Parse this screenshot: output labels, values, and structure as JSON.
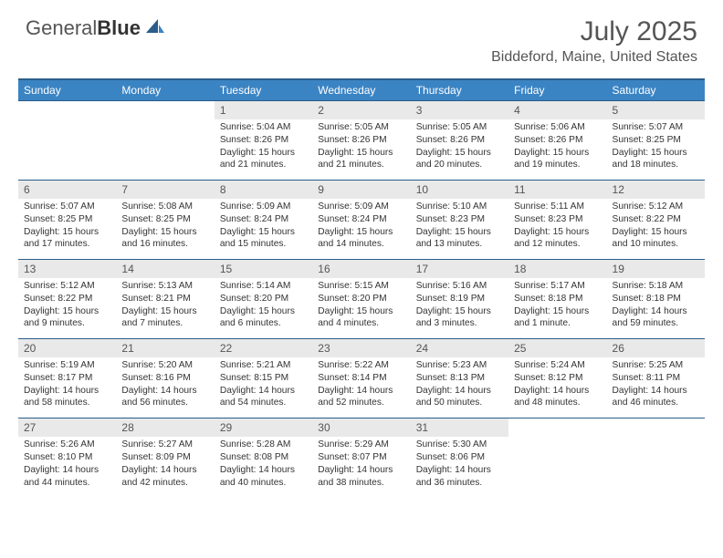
{
  "brand": {
    "part1": "General",
    "part2": "Blue"
  },
  "title": "July 2025",
  "location": "Biddeford, Maine, United States",
  "colors": {
    "header_bg": "#3b84c4",
    "header_border": "#2a5d8a",
    "daynum_bg": "#e9e9e9",
    "text": "#333333",
    "muted": "#555555",
    "white": "#ffffff"
  },
  "typography": {
    "title_fontsize": 30,
    "location_fontsize": 16,
    "dayheader_fontsize": 12,
    "daynum_fontsize": 12,
    "info_fontsize": 10.2
  },
  "day_headers": [
    "Sunday",
    "Monday",
    "Tuesday",
    "Wednesday",
    "Thursday",
    "Friday",
    "Saturday"
  ],
  "weeks": [
    [
      {
        "n": "",
        "sr": "",
        "ss": "",
        "dl": ""
      },
      {
        "n": "",
        "sr": "",
        "ss": "",
        "dl": ""
      },
      {
        "n": "1",
        "sr": "5:04 AM",
        "ss": "8:26 PM",
        "dl": "15 hours and 21 minutes."
      },
      {
        "n": "2",
        "sr": "5:05 AM",
        "ss": "8:26 PM",
        "dl": "15 hours and 21 minutes."
      },
      {
        "n": "3",
        "sr": "5:05 AM",
        "ss": "8:26 PM",
        "dl": "15 hours and 20 minutes."
      },
      {
        "n": "4",
        "sr": "5:06 AM",
        "ss": "8:26 PM",
        "dl": "15 hours and 19 minutes."
      },
      {
        "n": "5",
        "sr": "5:07 AM",
        "ss": "8:25 PM",
        "dl": "15 hours and 18 minutes."
      }
    ],
    [
      {
        "n": "6",
        "sr": "5:07 AM",
        "ss": "8:25 PM",
        "dl": "15 hours and 17 minutes."
      },
      {
        "n": "7",
        "sr": "5:08 AM",
        "ss": "8:25 PM",
        "dl": "15 hours and 16 minutes."
      },
      {
        "n": "8",
        "sr": "5:09 AM",
        "ss": "8:24 PM",
        "dl": "15 hours and 15 minutes."
      },
      {
        "n": "9",
        "sr": "5:09 AM",
        "ss": "8:24 PM",
        "dl": "15 hours and 14 minutes."
      },
      {
        "n": "10",
        "sr": "5:10 AM",
        "ss": "8:23 PM",
        "dl": "15 hours and 13 minutes."
      },
      {
        "n": "11",
        "sr": "5:11 AM",
        "ss": "8:23 PM",
        "dl": "15 hours and 12 minutes."
      },
      {
        "n": "12",
        "sr": "5:12 AM",
        "ss": "8:22 PM",
        "dl": "15 hours and 10 minutes."
      }
    ],
    [
      {
        "n": "13",
        "sr": "5:12 AM",
        "ss": "8:22 PM",
        "dl": "15 hours and 9 minutes."
      },
      {
        "n": "14",
        "sr": "5:13 AM",
        "ss": "8:21 PM",
        "dl": "15 hours and 7 minutes."
      },
      {
        "n": "15",
        "sr": "5:14 AM",
        "ss": "8:20 PM",
        "dl": "15 hours and 6 minutes."
      },
      {
        "n": "16",
        "sr": "5:15 AM",
        "ss": "8:20 PM",
        "dl": "15 hours and 4 minutes."
      },
      {
        "n": "17",
        "sr": "5:16 AM",
        "ss": "8:19 PM",
        "dl": "15 hours and 3 minutes."
      },
      {
        "n": "18",
        "sr": "5:17 AM",
        "ss": "8:18 PM",
        "dl": "15 hours and 1 minute."
      },
      {
        "n": "19",
        "sr": "5:18 AM",
        "ss": "8:18 PM",
        "dl": "14 hours and 59 minutes."
      }
    ],
    [
      {
        "n": "20",
        "sr": "5:19 AM",
        "ss": "8:17 PM",
        "dl": "14 hours and 58 minutes."
      },
      {
        "n": "21",
        "sr": "5:20 AM",
        "ss": "8:16 PM",
        "dl": "14 hours and 56 minutes."
      },
      {
        "n": "22",
        "sr": "5:21 AM",
        "ss": "8:15 PM",
        "dl": "14 hours and 54 minutes."
      },
      {
        "n": "23",
        "sr": "5:22 AM",
        "ss": "8:14 PM",
        "dl": "14 hours and 52 minutes."
      },
      {
        "n": "24",
        "sr": "5:23 AM",
        "ss": "8:13 PM",
        "dl": "14 hours and 50 minutes."
      },
      {
        "n": "25",
        "sr": "5:24 AM",
        "ss": "8:12 PM",
        "dl": "14 hours and 48 minutes."
      },
      {
        "n": "26",
        "sr": "5:25 AM",
        "ss": "8:11 PM",
        "dl": "14 hours and 46 minutes."
      }
    ],
    [
      {
        "n": "27",
        "sr": "5:26 AM",
        "ss": "8:10 PM",
        "dl": "14 hours and 44 minutes."
      },
      {
        "n": "28",
        "sr": "5:27 AM",
        "ss": "8:09 PM",
        "dl": "14 hours and 42 minutes."
      },
      {
        "n": "29",
        "sr": "5:28 AM",
        "ss": "8:08 PM",
        "dl": "14 hours and 40 minutes."
      },
      {
        "n": "30",
        "sr": "5:29 AM",
        "ss": "8:07 PM",
        "dl": "14 hours and 38 minutes."
      },
      {
        "n": "31",
        "sr": "5:30 AM",
        "ss": "8:06 PM",
        "dl": "14 hours and 36 minutes."
      },
      {
        "n": "",
        "sr": "",
        "ss": "",
        "dl": ""
      },
      {
        "n": "",
        "sr": "",
        "ss": "",
        "dl": ""
      }
    ]
  ],
  "labels": {
    "sunrise": "Sunrise:",
    "sunset": "Sunset:",
    "daylight": "Daylight:"
  }
}
